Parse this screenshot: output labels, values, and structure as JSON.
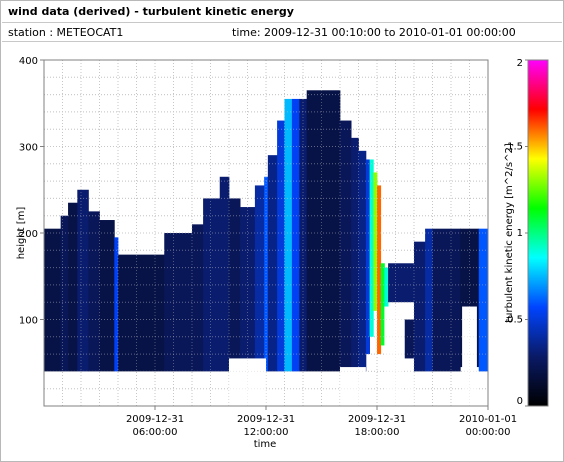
{
  "header": {
    "title": "wind data (derived) - turbulent kinetic energy",
    "station": "station : METEOCAT1",
    "time_range": "time: 2009-12-31 00:10:00 to 2010-01-01 00:00:00"
  },
  "chart_data": {
    "type": "heatmap",
    "xlabel": "time",
    "ylabel": "height [m]",
    "x_range_hours": [
      0,
      24
    ],
    "x_ticks": [
      {
        "hour": 6,
        "line1": "2009-12-31",
        "line2": "06:00:00"
      },
      {
        "hour": 12,
        "line1": "2009-12-31",
        "line2": "12:00:00"
      },
      {
        "hour": 18,
        "line1": "2009-12-31",
        "line2": "18:00:00"
      },
      {
        "hour": 24,
        "line1": "2010-01-01",
        "line2": "00:00:00"
      }
    ],
    "ylim": [
      0,
      400
    ],
    "y_ticks": [
      100,
      200,
      300,
      400
    ],
    "grid": true,
    "colorbar": {
      "label": "turbulent kinetic energy [m^2/s^2]",
      "range": [
        0,
        2
      ],
      "ticks": [
        "0",
        "0.5",
        "1",
        "1.5",
        "2"
      ],
      "tick_values": [
        0,
        0.5,
        1,
        1.5,
        2
      ],
      "colors": [
        "#000000",
        "#0a1a66",
        "#0044ff",
        "#00ffff",
        "#00ff00",
        "#ffff00",
        "#ff0000",
        "#ff00ff"
      ]
    },
    "columns": [
      {
        "t0": 0.0,
        "t1": 0.9,
        "hmin": 40,
        "hmax": 205,
        "tke": 0.2
      },
      {
        "t0": 0.9,
        "t1": 1.3,
        "hmin": 40,
        "hmax": 220,
        "tke": 0.25
      },
      {
        "t0": 1.3,
        "t1": 1.8,
        "hmin": 40,
        "hmax": 235,
        "tke": 0.2
      },
      {
        "t0": 1.8,
        "t1": 2.4,
        "hmin": 40,
        "hmax": 250,
        "tke": 0.3
      },
      {
        "t0": 2.4,
        "t1": 3.0,
        "hmin": 40,
        "hmax": 225,
        "tke": 0.25
      },
      {
        "t0": 3.0,
        "t1": 3.8,
        "hmin": 40,
        "hmax": 215,
        "tke": 0.2
      },
      {
        "t0": 3.8,
        "t1": 4.0,
        "hmin": 40,
        "hmax": 195,
        "tke": 0.55
      },
      {
        "t0": 4.0,
        "t1": 6.0,
        "hmin": 40,
        "hmax": 175,
        "tke": 0.2
      },
      {
        "t0": 6.0,
        "t1": 6.5,
        "hmin": 40,
        "hmax": 175,
        "tke": 0.2
      },
      {
        "t0": 6.5,
        "t1": 8.0,
        "hmin": 40,
        "hmax": 200,
        "tke": 0.25
      },
      {
        "t0": 8.0,
        "t1": 8.6,
        "hmin": 40,
        "hmax": 210,
        "tke": 0.25
      },
      {
        "t0": 8.6,
        "t1": 9.5,
        "hmin": 40,
        "hmax": 240,
        "tke": 0.3
      },
      {
        "t0": 9.5,
        "t1": 10.0,
        "hmin": 40,
        "hmax": 265,
        "tke": 0.3
      },
      {
        "t0": 10.0,
        "t1": 10.6,
        "hmin": 40,
        "hmax": 240,
        "tke": 0.25
      },
      {
        "t0": 10.6,
        "t1": 11.4,
        "hmin": 40,
        "hmax": 230,
        "tke": 0.3
      },
      {
        "t0": 11.4,
        "t1": 11.9,
        "hmin": 40,
        "hmax": 255,
        "tke": 0.4
      },
      {
        "t0": 11.9,
        "t1": 12.1,
        "hmin": 40,
        "hmax": 265,
        "tke": 0.6
      },
      {
        "t0": 12.1,
        "t1": 12.6,
        "hmin": 40,
        "hmax": 290,
        "tke": 0.35
      },
      {
        "t0": 12.6,
        "t1": 13.0,
        "hmin": 40,
        "hmax": 330,
        "tke": 0.5
      },
      {
        "t0": 13.0,
        "t1": 13.4,
        "hmin": 40,
        "hmax": 355,
        "tke": 0.75
      },
      {
        "t0": 13.4,
        "t1": 13.8,
        "hmin": 40,
        "hmax": 355,
        "tke": 0.55
      },
      {
        "t0": 13.8,
        "t1": 14.2,
        "hmin": 40,
        "hmax": 355,
        "tke": 0.3
      },
      {
        "t0": 14.2,
        "t1": 16.0,
        "hmin": 40,
        "hmax": 365,
        "tke": 0.2
      },
      {
        "t0": 16.0,
        "t1": 16.6,
        "hmin": 40,
        "hmax": 330,
        "tke": 0.25
      },
      {
        "t0": 16.6,
        "t1": 17.0,
        "hmin": 40,
        "hmax": 310,
        "tke": 0.3
      },
      {
        "t0": 17.0,
        "t1": 17.4,
        "hmin": 40,
        "hmax": 295,
        "tke": 0.35
      },
      {
        "t0": 17.4,
        "t1": 17.6,
        "hmin": 60,
        "hmax": 285,
        "tke": 0.5
      },
      {
        "t0": 17.6,
        "t1": 17.8,
        "hmin": 80,
        "hmax": 285,
        "tke": 0.9
      },
      {
        "t0": 17.8,
        "t1": 18.0,
        "hmin": 110,
        "hmax": 270,
        "tke": 1.3
      },
      {
        "t0": 18.0,
        "t1": 18.2,
        "hmin": 60,
        "hmax": 255,
        "tke": 1.6
      },
      {
        "t0": 18.2,
        "t1": 18.4,
        "hmin": 70,
        "hmax": 165,
        "tke": 1.1
      },
      {
        "t0": 18.4,
        "t1": 18.6,
        "hmin": 110,
        "hmax": 160,
        "tke": 0.9
      },
      {
        "t0": 18.6,
        "t1": 20.0,
        "hmin": 120,
        "hmax": 165,
        "tke": 0.3
      },
      {
        "t0": 19.5,
        "t1": 20.1,
        "hmin": 55,
        "hmax": 100,
        "tke": 0.25
      },
      {
        "t0": 20.0,
        "t1": 20.6,
        "hmin": 40,
        "hmax": 190,
        "tke": 0.3
      },
      {
        "t0": 20.6,
        "t1": 21.0,
        "hmin": 40,
        "hmax": 205,
        "tke": 0.4
      },
      {
        "t0": 21.0,
        "t1": 22.5,
        "hmin": 40,
        "hmax": 205,
        "tke": 0.25
      },
      {
        "t0": 22.5,
        "t1": 23.5,
        "hmin": 45,
        "hmax": 205,
        "tke": 0.2
      },
      {
        "t0": 23.5,
        "t1": 24.0,
        "hmin": 40,
        "hmax": 205,
        "tke": 0.6
      }
    ],
    "blanks": [
      {
        "t0": 10.0,
        "t1": 12.0,
        "hmin": 0,
        "hmax": 55
      },
      {
        "t0": 16.0,
        "t1": 17.4,
        "hmin": 0,
        "hmax": 45
      },
      {
        "t0": 18.4,
        "t1": 19.4,
        "hmin": 0,
        "hmax": 115
      },
      {
        "t0": 22.6,
        "t1": 23.4,
        "hmin": 0,
        "hmax": 115
      },
      {
        "t0": 19.6,
        "t1": 20.0,
        "hmin": 0,
        "hmax": 40
      }
    ]
  }
}
